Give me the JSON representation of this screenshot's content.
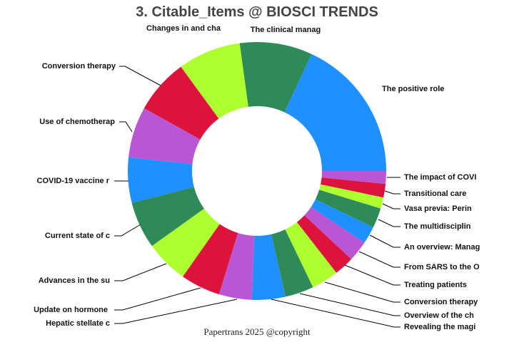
{
  "chart_data": {
    "type": "pie",
    "hole": true,
    "title": "3. Citable_Items @ BIOSCI TRENDS",
    "direction": "counterclockwise",
    "start": "3 o'clock",
    "unit": "percent (estimated)",
    "labels": [
      "The positive role",
      "The clinical manag",
      "Changes in and cha",
      "Conversion therapy",
      "Use of chemotherap",
      "COVID-19 vaccine r",
      "Current state of c",
      "Advances in the su",
      "Update on hormone ",
      "Hepatic stellate c",
      "Revealing the magi",
      "Overview of the ch",
      "Conversion therapy",
      "Treating patients",
      "From SARS to the O",
      "An overview: Manag",
      "The multidisciplin",
      "Vasa previa: Perin",
      "Transitional care",
      "The impact of COVI"
    ],
    "values": [
      18.1,
      9.1,
      7.9,
      6.9,
      6.4,
      5.7,
      5.9,
      5.4,
      5.0,
      4.1,
      4.2,
      3.6,
      3.4,
      2.5,
      2.6,
      2.2,
      2.5,
      1.4,
      1.7,
      1.6
    ],
    "colors": [
      "#1E90FF",
      "#2E8B57",
      "#ADFF2F",
      "#DC143C",
      "#BA55D3"
    ]
  },
  "footer": "Papertrans 2025 @copyright"
}
